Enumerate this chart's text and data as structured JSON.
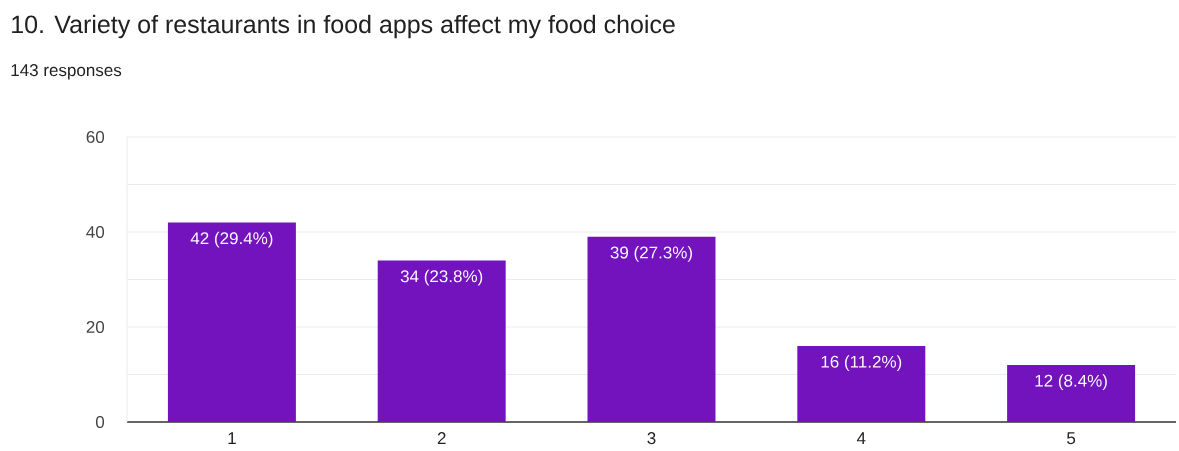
{
  "chart_data": {
    "type": "bar",
    "title": "10. Variety of restaurants in food apps affect my food choice",
    "subtitle": "143 responses",
    "categories": [
      "1",
      "2",
      "3",
      "4",
      "5"
    ],
    "values": [
      42,
      34,
      39,
      16,
      12
    ],
    "color": "#7213bd",
    "value_labels": [
      "42 (29.4%)",
      "34 (23.8%)",
      "39 (27.3%)",
      "16 (11.2%)",
      "12 (8.4%)"
    ],
    "ylim": [
      0,
      60
    ],
    "yticks": [
      0,
      {
        "value": 10,
        "label": null
      },
      20,
      {
        "value": 30,
        "label": null
      },
      40,
      {
        "value": 50,
        "label": null
      },
      60
    ],
    "grid": "y"
  }
}
